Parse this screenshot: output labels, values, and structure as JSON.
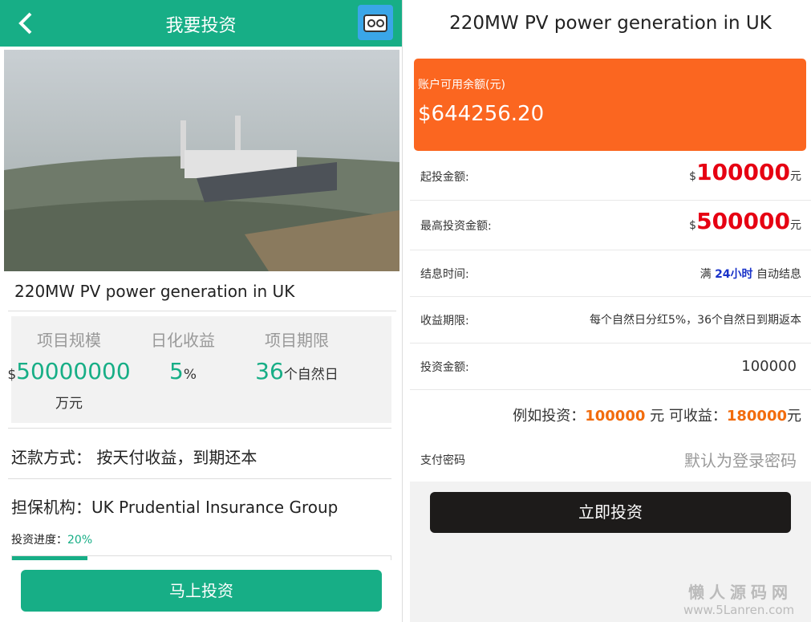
{
  "left": {
    "header": {
      "title": "我要投资"
    },
    "project": {
      "name": "220MW PV power generation in UK"
    },
    "stats": [
      {
        "label": "项目规模",
        "prefix": "$",
        "value": "50000000",
        "unit": "万元"
      },
      {
        "label": "日化收益",
        "value": "5",
        "unit": "%"
      },
      {
        "label": "项目期限",
        "value": "36",
        "unit": "个自然日"
      }
    ],
    "repayment": {
      "label": "还款方式：",
      "value": "按天付收益，到期还本"
    },
    "guarantee": {
      "label": "担保机构：",
      "value": "UK Prudential Insurance Group"
    },
    "progress": {
      "label": "投资进度：",
      "value": 20,
      "value_label": "20%"
    },
    "button": "马上投资"
  },
  "right": {
    "header": {
      "title": "220MW PV power generation in UK"
    },
    "balance": {
      "label": "账户可用余额(元)",
      "value": "$644256.20"
    },
    "rows": [
      {
        "label": "起投金额:",
        "prefix": "$",
        "value": "100000",
        "unit": "元"
      },
      {
        "label": "最高投资金额:",
        "prefix": "$",
        "value": "500000",
        "unit": "元"
      },
      {
        "label": "结息时间:",
        "parts": [
          "满",
          "24小时",
          "自动结息"
        ]
      },
      {
        "label": "收益期限:",
        "value": "每个自然日分红5%，36个自然日到期返本"
      },
      {
        "label": "投资金额:",
        "value": "100000"
      }
    ],
    "example": {
      "prefix": "例如投资：",
      "amount": "100000",
      "mid": "元 可收益：",
      "income": "180000",
      "unit": "元"
    },
    "password": {
      "label": "支付密码",
      "placeholder": "默认为登录密码"
    },
    "button": "立即投资"
  },
  "watermark": {
    "title": "懒人源码网",
    "url": "www.5Lanren.com"
  }
}
